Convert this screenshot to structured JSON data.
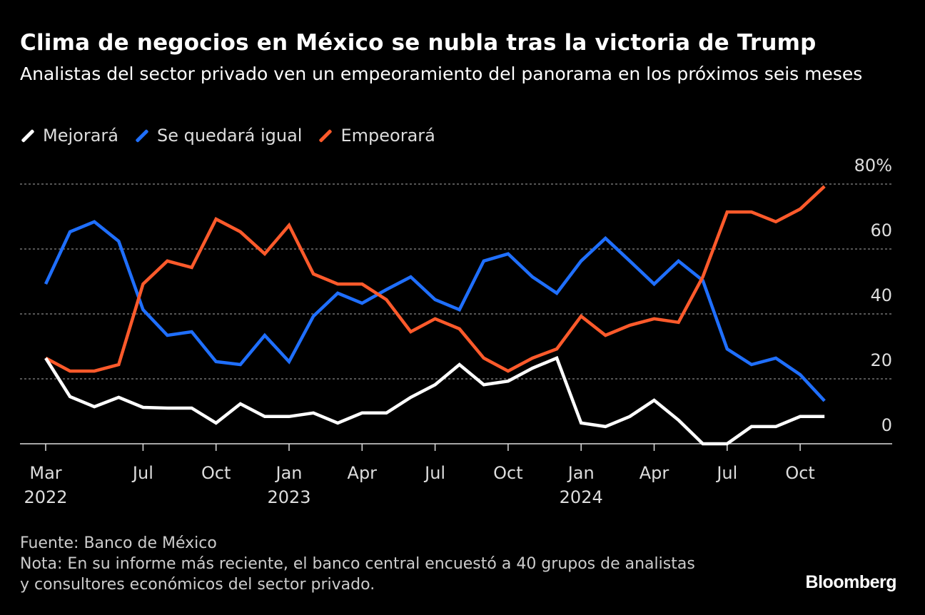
{
  "chart_data": {
    "type": "line",
    "title": "Clima de negocios en México se nubla tras la victoria de Trump",
    "subtitle": "Analistas del sector privado ven un empeoramiento del panorama en los próximos seis meses",
    "x": [
      "2022-03",
      "2022-04",
      "2022-05",
      "2022-06",
      "2022-07",
      "2022-08",
      "2022-09",
      "2022-10",
      "2022-11",
      "2022-12",
      "2023-01",
      "2023-02",
      "2023-03",
      "2023-04",
      "2023-05",
      "2023-06",
      "2023-07",
      "2023-08",
      "2023-09",
      "2023-10",
      "2023-11",
      "2023-12",
      "2024-01",
      "2024-02",
      "2024-03",
      "2024-04",
      "2024-05",
      "2024-06",
      "2024-07",
      "2024-08",
      "2024-09",
      "2024-10",
      "2024-11"
    ],
    "series": [
      {
        "name": "Mejorará",
        "color": "#ffffff",
        "values": [
          26.4,
          14.5,
          11.4,
          14.3,
          11.2,
          11,
          11,
          6.4,
          12.3,
          8.4,
          8.4,
          9.5,
          6.4,
          9.5,
          9.5,
          14.3,
          18.2,
          24.4,
          18.2,
          19.3,
          23.3,
          26.4,
          6.4,
          5.3,
          8.4,
          13.4,
          7.3,
          0,
          0,
          5.3,
          5.3,
          8.4,
          8.4
        ]
      },
      {
        "name": "Se quedará igual",
        "color": "#1f6fff",
        "values": [
          49.2,
          65.3,
          68.4,
          62.4,
          41.3,
          33.4,
          34.5,
          25.3,
          24.4,
          33.4,
          25.3,
          39.3,
          46.4,
          43.3,
          47.5,
          51.4,
          44.4,
          41.3,
          56.3,
          58.5,
          51.4,
          46.4,
          56.3,
          63.3,
          56.3,
          49.2,
          56.3,
          50.3,
          29.2,
          24.4,
          26.4,
          21.3,
          13.2
        ]
      },
      {
        "name": "Empeorará",
        "color": "#ff5a2b",
        "values": [
          26.4,
          22.4,
          22.4,
          24.4,
          49.2,
          56.3,
          54.3,
          69.2,
          65.3,
          58.5,
          67.3,
          52.3,
          49.2,
          49.2,
          44.4,
          34.5,
          38.5,
          35.4,
          26.4,
          22.4,
          26.4,
          29.2,
          39.3,
          33.4,
          36.5,
          38.5,
          37.4,
          51.4,
          71.4,
          71.4,
          68.4,
          72.3,
          79.3
        ]
      }
    ],
    "ylim": [
      0,
      80
    ],
    "yticks": [
      {
        "value": 0,
        "label": "0"
      },
      {
        "value": 20,
        "label": "20"
      },
      {
        "value": 40,
        "label": "40"
      },
      {
        "value": 60,
        "label": "60"
      },
      {
        "value": 80,
        "label": "80%"
      }
    ],
    "xticks": [
      {
        "at": "2022-03",
        "label": "Mar",
        "year": "2022"
      },
      {
        "at": "2022-07",
        "label": "Jul",
        "year": ""
      },
      {
        "at": "2022-10",
        "label": "Oct",
        "year": ""
      },
      {
        "at": "2023-01",
        "label": "Jan",
        "year": "2023"
      },
      {
        "at": "2023-04",
        "label": "Apr",
        "year": ""
      },
      {
        "at": "2023-07",
        "label": "Jul",
        "year": ""
      },
      {
        "at": "2023-10",
        "label": "Oct",
        "year": ""
      },
      {
        "at": "2024-01",
        "label": "Jan",
        "year": "2024"
      },
      {
        "at": "2024-04",
        "label": "Apr",
        "year": ""
      },
      {
        "at": "2024-07",
        "label": "Jul",
        "year": ""
      },
      {
        "at": "2024-10",
        "label": "Oct",
        "year": ""
      }
    ],
    "grid": true,
    "legend": "top-left"
  },
  "footer": {
    "source": "Fuente: Banco de México",
    "note": "Nota: En su informe más reciente, el banco central encuestó a 40 grupos de analistas y consultores económicos del sector privado."
  },
  "brand": "Bloomberg"
}
